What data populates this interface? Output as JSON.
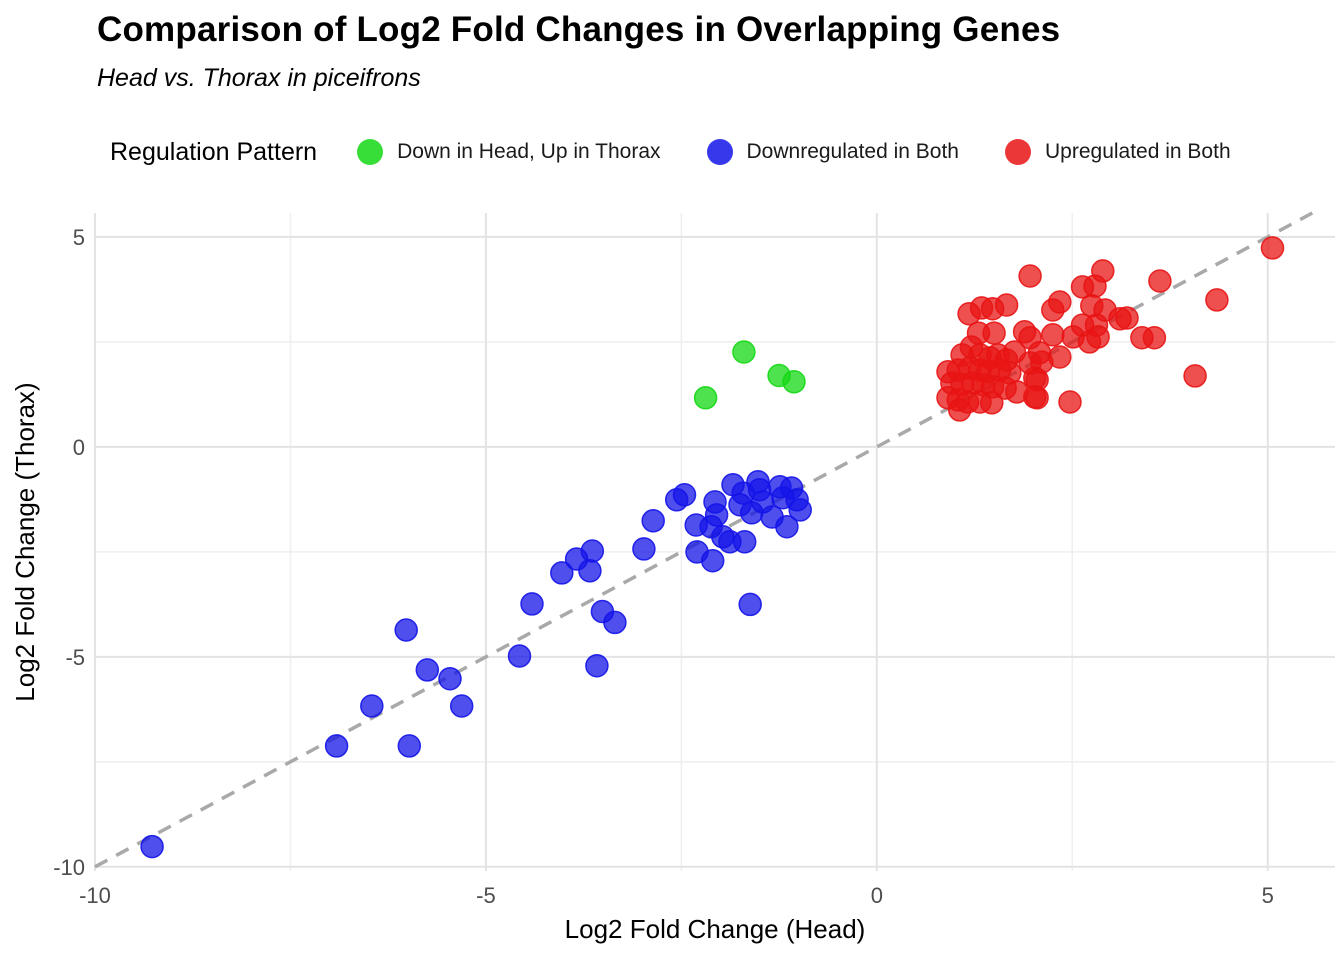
{
  "title": "Comparison of Log2 Fold Changes in Overlapping Genes",
  "subtitle": "Head vs. Thorax in piceifrons",
  "legend": {
    "title": "Regulation Pattern",
    "items": [
      {
        "label": "Down in Head, Up in Thorax",
        "color": "#14d814"
      },
      {
        "label": "Downregulated in Both",
        "color": "#1414e8"
      },
      {
        "label": "Upregulated in Both",
        "color": "#e81414"
      }
    ]
  },
  "chart_data": {
    "type": "scatter",
    "title": "Comparison of Log2 Fold Changes in Overlapping Genes",
    "subtitle": "Head vs. Thorax in piceifrons",
    "xlabel": "Log2 Fold Change (Head)",
    "ylabel": "Log2 Fold Change (Thorax)",
    "xlim": [
      -10.0,
      5.86
    ],
    "ylim": [
      -10.1,
      5.57
    ],
    "xticks": [
      -10,
      -5,
      0,
      5
    ],
    "yticks": [
      -10,
      -5,
      0,
      5
    ],
    "xticks_minor": [
      -7.5,
      -2.5,
      2.5
    ],
    "yticks_minor": [
      -7.5,
      -2.5,
      2.5
    ],
    "grid": true,
    "legend_position": "top",
    "colors": {
      "grid_major": "#e3e3e3",
      "grid_minor": "#efefef",
      "tick_label": "#4d4d4d",
      "axis_title": "#000000",
      "reference_line": "#a9a9a9"
    },
    "reference_line": {
      "type": "identity",
      "label": "y = x",
      "style": "dashed"
    },
    "point_radius": 11,
    "fill_opacity": 0.75,
    "series": [
      {
        "name": "Down in Head, Up in Thorax",
        "color": "#14d814",
        "points": [
          [
            -2.19,
            1.17
          ],
          [
            -1.7,
            2.26
          ],
          [
            -1.25,
            1.7
          ],
          [
            -1.06,
            1.55
          ]
        ]
      },
      {
        "name": "Downregulated in Both",
        "color": "#1414e8",
        "points": [
          [
            -9.27,
            -9.52
          ],
          [
            -6.91,
            -7.12
          ],
          [
            -5.98,
            -7.12
          ],
          [
            -6.46,
            -6.17
          ],
          [
            -5.31,
            -6.17
          ],
          [
            -6.02,
            -4.36
          ],
          [
            -5.75,
            -5.31
          ],
          [
            -5.46,
            -5.52
          ],
          [
            -4.57,
            -4.98
          ],
          [
            -4.41,
            -3.74
          ],
          [
            -3.58,
            -5.21
          ],
          [
            -4.03,
            -3.0
          ],
          [
            -3.84,
            -2.67
          ],
          [
            -3.64,
            -2.48
          ],
          [
            -3.67,
            -2.95
          ],
          [
            -3.51,
            -3.92
          ],
          [
            -3.35,
            -4.18
          ],
          [
            -2.98,
            -2.43
          ],
          [
            -2.86,
            -1.76
          ],
          [
            -2.56,
            -1.26
          ],
          [
            -2.46,
            -1.14
          ],
          [
            -2.31,
            -1.86
          ],
          [
            -2.07,
            -1.31
          ],
          [
            -2.05,
            -1.62
          ],
          [
            -2.12,
            -1.9
          ],
          [
            -2.3,
            -2.5
          ],
          [
            -2.1,
            -2.71
          ],
          [
            -1.97,
            -2.14
          ],
          [
            -1.88,
            -2.26
          ],
          [
            -1.71,
            -1.1
          ],
          [
            -1.75,
            -1.38
          ],
          [
            -1.6,
            -1.57
          ],
          [
            -1.69,
            -2.26
          ],
          [
            -1.5,
            -1.02
          ],
          [
            -1.46,
            -1.31
          ],
          [
            -1.34,
            -1.67
          ],
          [
            -1.24,
            -0.95
          ],
          [
            -1.2,
            -1.21
          ],
          [
            -1.09,
            -0.98
          ],
          [
            -1.02,
            -1.26
          ],
          [
            -0.98,
            -1.5
          ],
          [
            -1.15,
            -1.9
          ],
          [
            -1.62,
            -3.75
          ],
          [
            -1.84,
            -0.9
          ],
          [
            -1.52,
            -0.83
          ]
        ]
      },
      {
        "name": "Upregulated in Both",
        "color": "#e81414",
        "points": [
          [
            5.06,
            4.74
          ],
          [
            1.96,
            4.07
          ],
          [
            2.89,
            4.19
          ],
          [
            2.79,
            3.83
          ],
          [
            2.63,
            3.81
          ],
          [
            3.62,
            3.95
          ],
          [
            4.35,
            3.5
          ],
          [
            2.75,
            3.36
          ],
          [
            2.92,
            3.26
          ],
          [
            2.34,
            3.45
          ],
          [
            2.25,
            3.26
          ],
          [
            1.18,
            3.17
          ],
          [
            1.34,
            3.31
          ],
          [
            1.48,
            3.29
          ],
          [
            1.66,
            3.38
          ],
          [
            3.11,
            3.05
          ],
          [
            3.2,
            3.07
          ],
          [
            2.81,
            2.9
          ],
          [
            2.63,
            2.9
          ],
          [
            3.39,
            2.6
          ],
          [
            3.55,
            2.6
          ],
          [
            4.07,
            1.69
          ],
          [
            2.02,
            1.64
          ],
          [
            2.05,
            1.17
          ],
          [
            2.47,
            1.07
          ],
          [
            1.3,
            2.71
          ],
          [
            1.5,
            2.71
          ],
          [
            1.89,
            2.74
          ],
          [
            1.96,
            2.6
          ],
          [
            2.25,
            2.67
          ],
          [
            2.51,
            2.62
          ],
          [
            2.72,
            2.5
          ],
          [
            2.83,
            2.62
          ],
          [
            1.21,
            2.38
          ],
          [
            1.09,
            2.19
          ],
          [
            1.32,
            2.19
          ],
          [
            1.45,
            2.12
          ],
          [
            1.55,
            2.19
          ],
          [
            1.66,
            2.07
          ],
          [
            1.76,
            2.26
          ],
          [
            1.96,
            2.0
          ],
          [
            2.11,
            2.02
          ],
          [
            2.34,
            2.14
          ],
          [
            2.08,
            2.24
          ],
          [
            0.91,
            1.79
          ],
          [
            1.04,
            1.83
          ],
          [
            1.19,
            1.88
          ],
          [
            1.32,
            1.83
          ],
          [
            1.42,
            1.79
          ],
          [
            1.57,
            1.83
          ],
          [
            1.7,
            1.76
          ],
          [
            2.05,
            1.6
          ],
          [
            0.96,
            1.52
          ],
          [
            1.09,
            1.48
          ],
          [
            1.23,
            1.52
          ],
          [
            1.36,
            1.48
          ],
          [
            1.48,
            1.43
          ],
          [
            1.64,
            1.4
          ],
          [
            1.79,
            1.31
          ],
          [
            2.02,
            1.19
          ],
          [
            0.91,
            1.17
          ],
          [
            1.04,
            1.12
          ],
          [
            1.16,
            1.07
          ],
          [
            1.32,
            1.07
          ],
          [
            1.47,
            1.05
          ],
          [
            1.06,
            0.88
          ]
        ]
      }
    ]
  }
}
